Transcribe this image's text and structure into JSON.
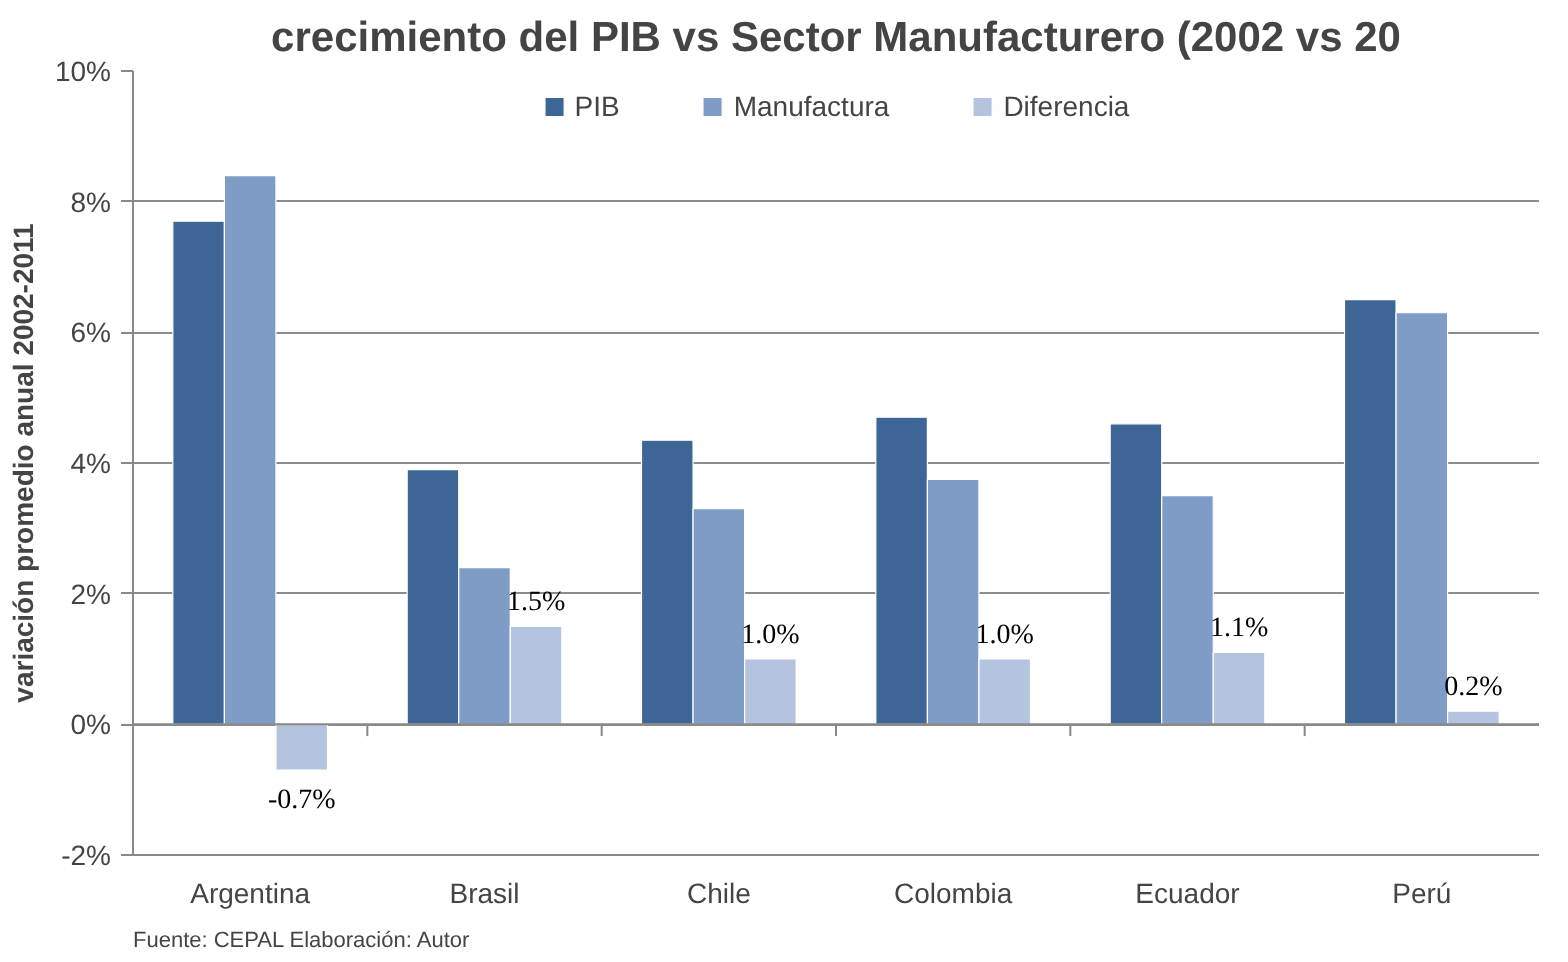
{
  "chart_data": {
    "type": "bar",
    "title": "crecimiento del PIB vs Sector Manufacturero (2002 vs 20",
    "ylabel": "variación promedio anual 2002-2011",
    "categories": [
      "Argentina",
      "Brasil",
      "Chile",
      "Colombia",
      "Ecuador",
      "Perú"
    ],
    "series": [
      {
        "name": "PIB",
        "color": "#3d6596",
        "values": [
          7.7,
          3.9,
          4.35,
          4.7,
          4.6,
          6.5
        ]
      },
      {
        "name": "Manufactura",
        "color": "#7f9cc7",
        "values": [
          8.4,
          2.4,
          3.3,
          3.75,
          3.5,
          6.3
        ]
      },
      {
        "name": "Diferencia",
        "color": "#b4c3de",
        "values": [
          -0.7,
          1.5,
          1.0,
          1.0,
          1.1,
          0.2
        ],
        "value_labels": [
          "-0.7%",
          "1.5%",
          "1.0%",
          "1.0%",
          "1.1%",
          "0.2%"
        ]
      }
    ],
    "ylim": [
      -2,
      10
    ],
    "yticks": [
      {
        "value": -2,
        "label": "-2%"
      },
      {
        "value": 0,
        "label": "0%"
      },
      {
        "value": 2,
        "label": "2%"
      },
      {
        "value": 4,
        "label": "4%"
      },
      {
        "value": 6,
        "label": "6%"
      },
      {
        "value": 8,
        "label": "8%"
      },
      {
        "value": 10,
        "label": "10%"
      }
    ],
    "grid": "y",
    "legend": "top",
    "annotations": [
      "Fuente: CEPAL  Elaboración: Autor"
    ]
  }
}
